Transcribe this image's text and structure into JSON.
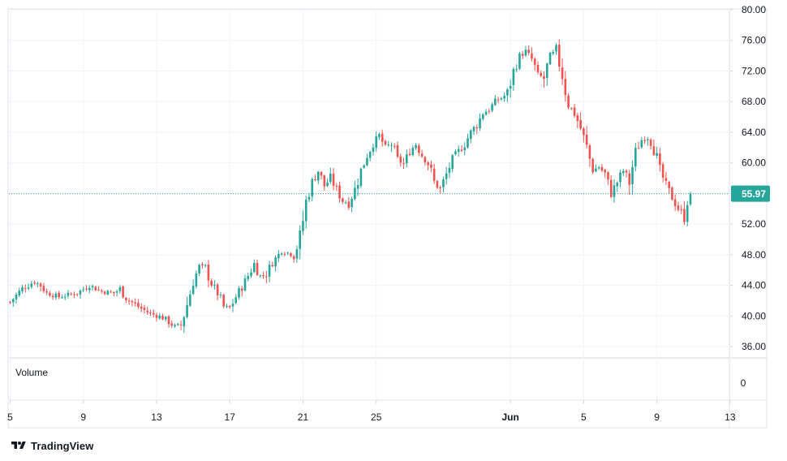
{
  "chart_data": {
    "type": "candlestick",
    "title": "",
    "xlabel": "",
    "ylabel": "",
    "ylim": [
      34,
      80
    ],
    "y_ticks": [
      "80.00",
      "76.00",
      "72.00",
      "68.00",
      "64.00",
      "60.00",
      "56.00",
      "52.00",
      "48.00",
      "44.00",
      "40.00",
      "36.00"
    ],
    "x_ticks": [
      {
        "label": "5",
        "bar": 0
      },
      {
        "label": "9",
        "bar": 24
      },
      {
        "label": "13",
        "bar": 48
      },
      {
        "label": "17",
        "bar": 72
      },
      {
        "label": "21",
        "bar": 96
      },
      {
        "label": "25",
        "bar": 120
      },
      {
        "label": "Jun",
        "bar": 164,
        "bold": true
      },
      {
        "label": "5",
        "bar": 188
      },
      {
        "label": "9",
        "bar": 212
      },
      {
        "label": "13",
        "bar": 236
      }
    ],
    "last_price": 55.97,
    "last_price_label": "55.97",
    "grid": true,
    "up_color": "#26a69a",
    "down_color": "#ef5350",
    "volume": {
      "label": "Volume",
      "value_label": "0",
      "value": 0
    },
    "series": [
      {
        "name": "",
        "anchors": [
          [
            0,
            41.8
          ],
          [
            4,
            43.6
          ],
          [
            8,
            44.5
          ],
          [
            10,
            44.0
          ],
          [
            12,
            43.0
          ],
          [
            16,
            42.5
          ],
          [
            22,
            43.0
          ],
          [
            26,
            44.0
          ],
          [
            30,
            43.2
          ],
          [
            34,
            43.0
          ],
          [
            36,
            43.5
          ],
          [
            38,
            42.3
          ],
          [
            42,
            41.2
          ],
          [
            46,
            40.3
          ],
          [
            50,
            39.8
          ],
          [
            54,
            38.6
          ],
          [
            56,
            38.8
          ],
          [
            58,
            41.5
          ],
          [
            60,
            44.5
          ],
          [
            62,
            46.5
          ],
          [
            64,
            46.2
          ],
          [
            66,
            44.2
          ],
          [
            68,
            43.0
          ],
          [
            70,
            41.2
          ],
          [
            72,
            41.0
          ],
          [
            74,
            42.5
          ],
          [
            77,
            44.5
          ],
          [
            80,
            46.8
          ],
          [
            82,
            45.2
          ],
          [
            84,
            45.5
          ],
          [
            86,
            47.0
          ],
          [
            89,
            48.5
          ],
          [
            93,
            48.0
          ],
          [
            95,
            50.0
          ],
          [
            97,
            55.0
          ],
          [
            99,
            57.5
          ],
          [
            101,
            59.0
          ],
          [
            103,
            57.0
          ],
          [
            105,
            58.0
          ],
          [
            107,
            56.5
          ],
          [
            109,
            55.0
          ],
          [
            111,
            54.8
          ],
          [
            113,
            56.5
          ],
          [
            115,
            59.0
          ],
          [
            117,
            61.0
          ],
          [
            119,
            62.5
          ],
          [
            121,
            63.5
          ],
          [
            123,
            62.0
          ],
          [
            125,
            62.5
          ],
          [
            127,
            60.5
          ],
          [
            129,
            59.8
          ],
          [
            131,
            61.5
          ],
          [
            133,
            62.5
          ],
          [
            135,
            61.0
          ],
          [
            137,
            60.0
          ],
          [
            139,
            57.5
          ],
          [
            141,
            56.5
          ],
          [
            143,
            58.5
          ],
          [
            145,
            60.5
          ],
          [
            147,
            61.5
          ],
          [
            149,
            62.5
          ],
          [
            151,
            64.0
          ],
          [
            153,
            65.0
          ],
          [
            155,
            66.5
          ],
          [
            157,
            67.0
          ],
          [
            159,
            68.0
          ],
          [
            161,
            68.5
          ],
          [
            163,
            69.0
          ],
          [
            165,
            72.0
          ],
          [
            167,
            74.0
          ],
          [
            169,
            74.5
          ],
          [
            171,
            73.5
          ],
          [
            173,
            71.5
          ],
          [
            175,
            71.0
          ],
          [
            177,
            74.0
          ],
          [
            179,
            74.5
          ],
          [
            181,
            71.5
          ],
          [
            183,
            67.5
          ],
          [
            185,
            66.5
          ],
          [
            187,
            64.5
          ],
          [
            189,
            62.0
          ],
          [
            191,
            59.0
          ],
          [
            193,
            59.5
          ],
          [
            195,
            58.5
          ],
          [
            197,
            56.0
          ],
          [
            199,
            57.5
          ],
          [
            201,
            59.0
          ],
          [
            203,
            57.5
          ],
          [
            205,
            61.5
          ],
          [
            207,
            63.0
          ],
          [
            209,
            63.5
          ],
          [
            211,
            62.0
          ],
          [
            213,
            59.0
          ],
          [
            215,
            57.0
          ],
          [
            217,
            55.5
          ],
          [
            219,
            54.0
          ],
          [
            221,
            53.2
          ],
          [
            222,
            55.0
          ],
          [
            223,
            55.97
          ]
        ]
      }
    ]
  },
  "branding": {
    "name": "TradingView",
    "logo_icon": "tradingview-logo-icon"
  }
}
